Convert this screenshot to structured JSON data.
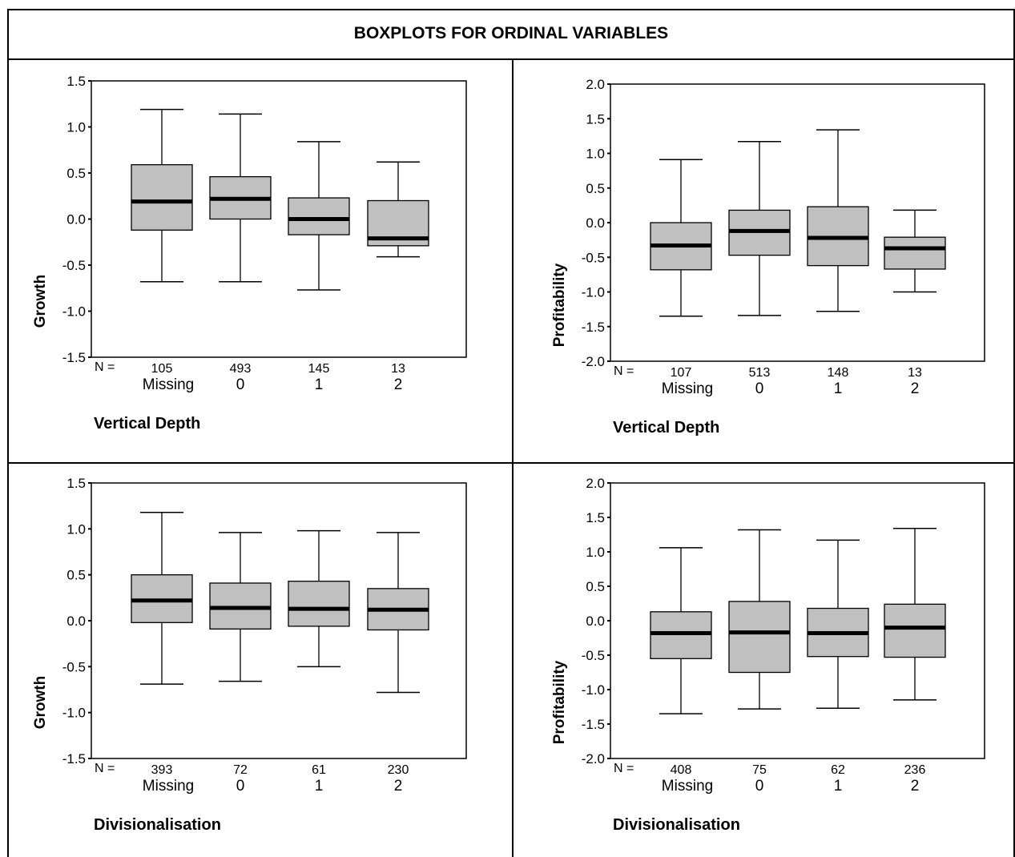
{
  "page_title": "BOXPLOTS FOR ORDINAL VARIABLES",
  "colors": {
    "box_fill": "#c0c0c0",
    "stroke": "#000000",
    "background": "#ffffff"
  },
  "chart_data": [
    {
      "type": "boxplot",
      "ylabel": "Growth",
      "xlabel": "Vertical Depth",
      "n_label": "N =",
      "ylim": [
        -1.5,
        1.5
      ],
      "yticks": [
        "-1.5",
        "-1.0",
        "-0.5",
        "0.0",
        "0.5",
        "1.0",
        "1.5"
      ],
      "categories": [
        "Missing",
        "0",
        "1",
        "2"
      ],
      "n": [
        "105",
        "493",
        "145",
        "13"
      ],
      "boxes": [
        {
          "whisker_low": -0.68,
          "q1": -0.12,
          "median": 0.19,
          "q3": 0.59,
          "whisker_high": 1.19
        },
        {
          "whisker_low": -0.68,
          "q1": 0.0,
          "median": 0.22,
          "q3": 0.46,
          "whisker_high": 1.14
        },
        {
          "whisker_low": -0.77,
          "q1": -0.17,
          "median": 0.0,
          "q3": 0.23,
          "whisker_high": 0.84
        },
        {
          "whisker_low": -0.41,
          "q1": -0.29,
          "median": -0.21,
          "q3": 0.2,
          "whisker_high": 0.62
        }
      ]
    },
    {
      "type": "boxplot",
      "ylabel": "Profitability",
      "xlabel": "Vertical Depth",
      "n_label": "N =",
      "ylim": [
        -2.0,
        2.0
      ],
      "yticks": [
        "-2.0",
        "-1.5",
        "-1.0",
        "-0.5",
        "0.0",
        "0.5",
        "1.0",
        "1.5",
        "2.0"
      ],
      "categories": [
        "Missing",
        "0",
        "1",
        "2"
      ],
      "n": [
        "107",
        "513",
        "148",
        "13"
      ],
      "boxes": [
        {
          "whisker_low": -1.35,
          "q1": -0.68,
          "median": -0.33,
          "q3": 0.0,
          "whisker_high": 0.91
        },
        {
          "whisker_low": -1.34,
          "q1": -0.47,
          "median": -0.12,
          "q3": 0.18,
          "whisker_high": 1.17
        },
        {
          "whisker_low": -1.28,
          "q1": -0.62,
          "median": -0.22,
          "q3": 0.23,
          "whisker_high": 1.34
        },
        {
          "whisker_low": -1.0,
          "q1": -0.67,
          "median": -0.37,
          "q3": -0.21,
          "whisker_high": 0.18
        }
      ]
    },
    {
      "type": "boxplot",
      "ylabel": "Growth",
      "xlabel": "Divisionalisation",
      "n_label": "N =",
      "ylim": [
        -1.5,
        1.5
      ],
      "yticks": [
        "-1.5",
        "-1.0",
        "-0.5",
        "0.0",
        "0.5",
        "1.0",
        "1.5"
      ],
      "categories": [
        "Missing",
        "0",
        "1",
        "2"
      ],
      "n": [
        "393",
        "72",
        "61",
        "230"
      ],
      "boxes": [
        {
          "whisker_low": -0.69,
          "q1": -0.02,
          "median": 0.22,
          "q3": 0.5,
          "whisker_high": 1.18
        },
        {
          "whisker_low": -0.66,
          "q1": -0.09,
          "median": 0.14,
          "q3": 0.41,
          "whisker_high": 0.96
        },
        {
          "whisker_low": -0.5,
          "q1": -0.06,
          "median": 0.13,
          "q3": 0.43,
          "whisker_high": 0.98
        },
        {
          "whisker_low": -0.78,
          "q1": -0.1,
          "median": 0.12,
          "q3": 0.35,
          "whisker_high": 0.96
        }
      ]
    },
    {
      "type": "boxplot",
      "ylabel": "Profitability",
      "xlabel": "Divisionalisation",
      "n_label": "N =",
      "ylim": [
        -2.0,
        2.0
      ],
      "yticks": [
        "-2.0",
        "-1.5",
        "-1.0",
        "-0.5",
        "0.0",
        "0.5",
        "1.0",
        "1.5",
        "2.0"
      ],
      "categories": [
        "Missing",
        "0",
        "1",
        "2"
      ],
      "n": [
        "408",
        "75",
        "62",
        "236"
      ],
      "boxes": [
        {
          "whisker_low": -1.35,
          "q1": -0.55,
          "median": -0.18,
          "q3": 0.13,
          "whisker_high": 1.06
        },
        {
          "whisker_low": -1.28,
          "q1": -0.75,
          "median": -0.17,
          "q3": 0.28,
          "whisker_high": 1.32
        },
        {
          "whisker_low": -1.27,
          "q1": -0.52,
          "median": -0.18,
          "q3": 0.18,
          "whisker_high": 1.17
        },
        {
          "whisker_low": -1.15,
          "q1": -0.53,
          "median": -0.1,
          "q3": 0.24,
          "whisker_high": 1.34
        }
      ]
    }
  ]
}
